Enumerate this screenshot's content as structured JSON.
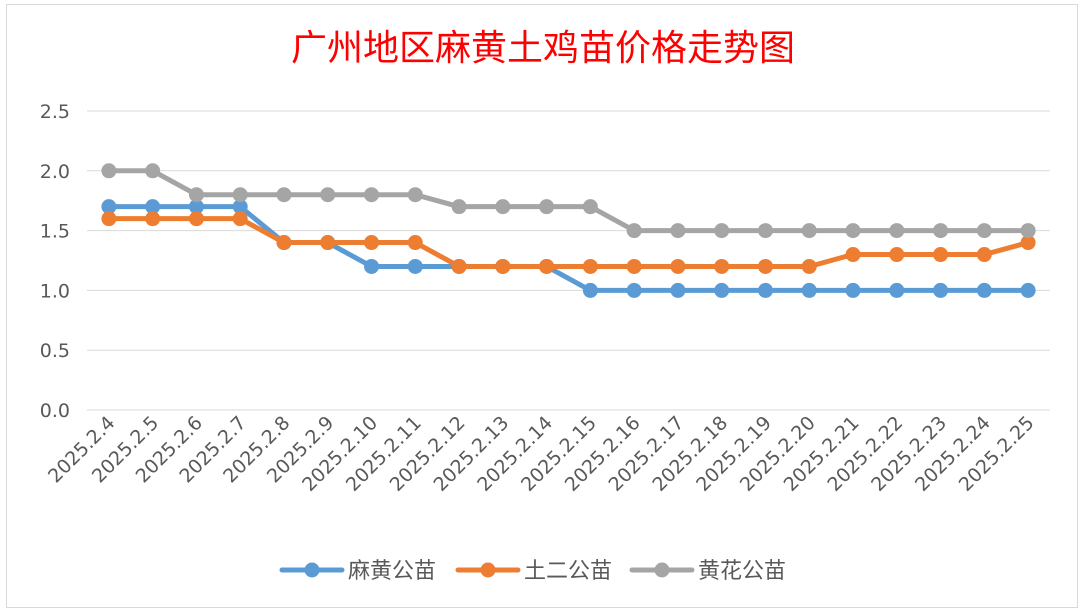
{
  "chart_data": {
    "type": "line",
    "title": "广州地区麻黄土鸡苗价格走势图",
    "xlabel": "",
    "ylabel": "",
    "ylim": [
      0,
      2.5
    ],
    "yticks": [
      "0.0",
      "0.5",
      "1.0",
      "1.5",
      "2.0",
      "2.5"
    ],
    "grid": true,
    "legend_position": "bottom",
    "categories": [
      "2025.2.4",
      "2025.2.5",
      "2025.2.6",
      "2025.2.7",
      "2025.2.8",
      "2025.2.9",
      "2025.2.10",
      "2025.2.11",
      "2025.2.12",
      "2025.2.13",
      "2025.2.14",
      "2025.2.15",
      "2025.2.16",
      "2025.2.17",
      "2025.2.18",
      "2025.2.19",
      "2025.2.20",
      "2025.2.21",
      "2025.2.22",
      "2025.2.23",
      "2025.2.24",
      "2025.2.25"
    ],
    "series": [
      {
        "name": "麻黄公苗",
        "color": "#5b9bd5",
        "values": [
          1.7,
          1.7,
          1.7,
          1.7,
          1.4,
          1.4,
          1.2,
          1.2,
          1.2,
          1.2,
          1.2,
          1.0,
          1.0,
          1.0,
          1.0,
          1.0,
          1.0,
          1.0,
          1.0,
          1.0,
          1.0,
          1.0
        ]
      },
      {
        "name": "土二公苗",
        "color": "#ed7d31",
        "values": [
          1.6,
          1.6,
          1.6,
          1.6,
          1.4,
          1.4,
          1.4,
          1.4,
          1.2,
          1.2,
          1.2,
          1.2,
          1.2,
          1.2,
          1.2,
          1.2,
          1.2,
          1.3,
          1.3,
          1.3,
          1.3,
          1.4
        ]
      },
      {
        "name": "黄花公苗",
        "color": "#a5a5a5",
        "values": [
          2.0,
          2.0,
          1.8,
          1.8,
          1.8,
          1.8,
          1.8,
          1.8,
          1.7,
          1.7,
          1.7,
          1.7,
          1.5,
          1.5,
          1.5,
          1.5,
          1.5,
          1.5,
          1.5,
          1.5,
          1.5,
          1.5
        ]
      }
    ]
  }
}
